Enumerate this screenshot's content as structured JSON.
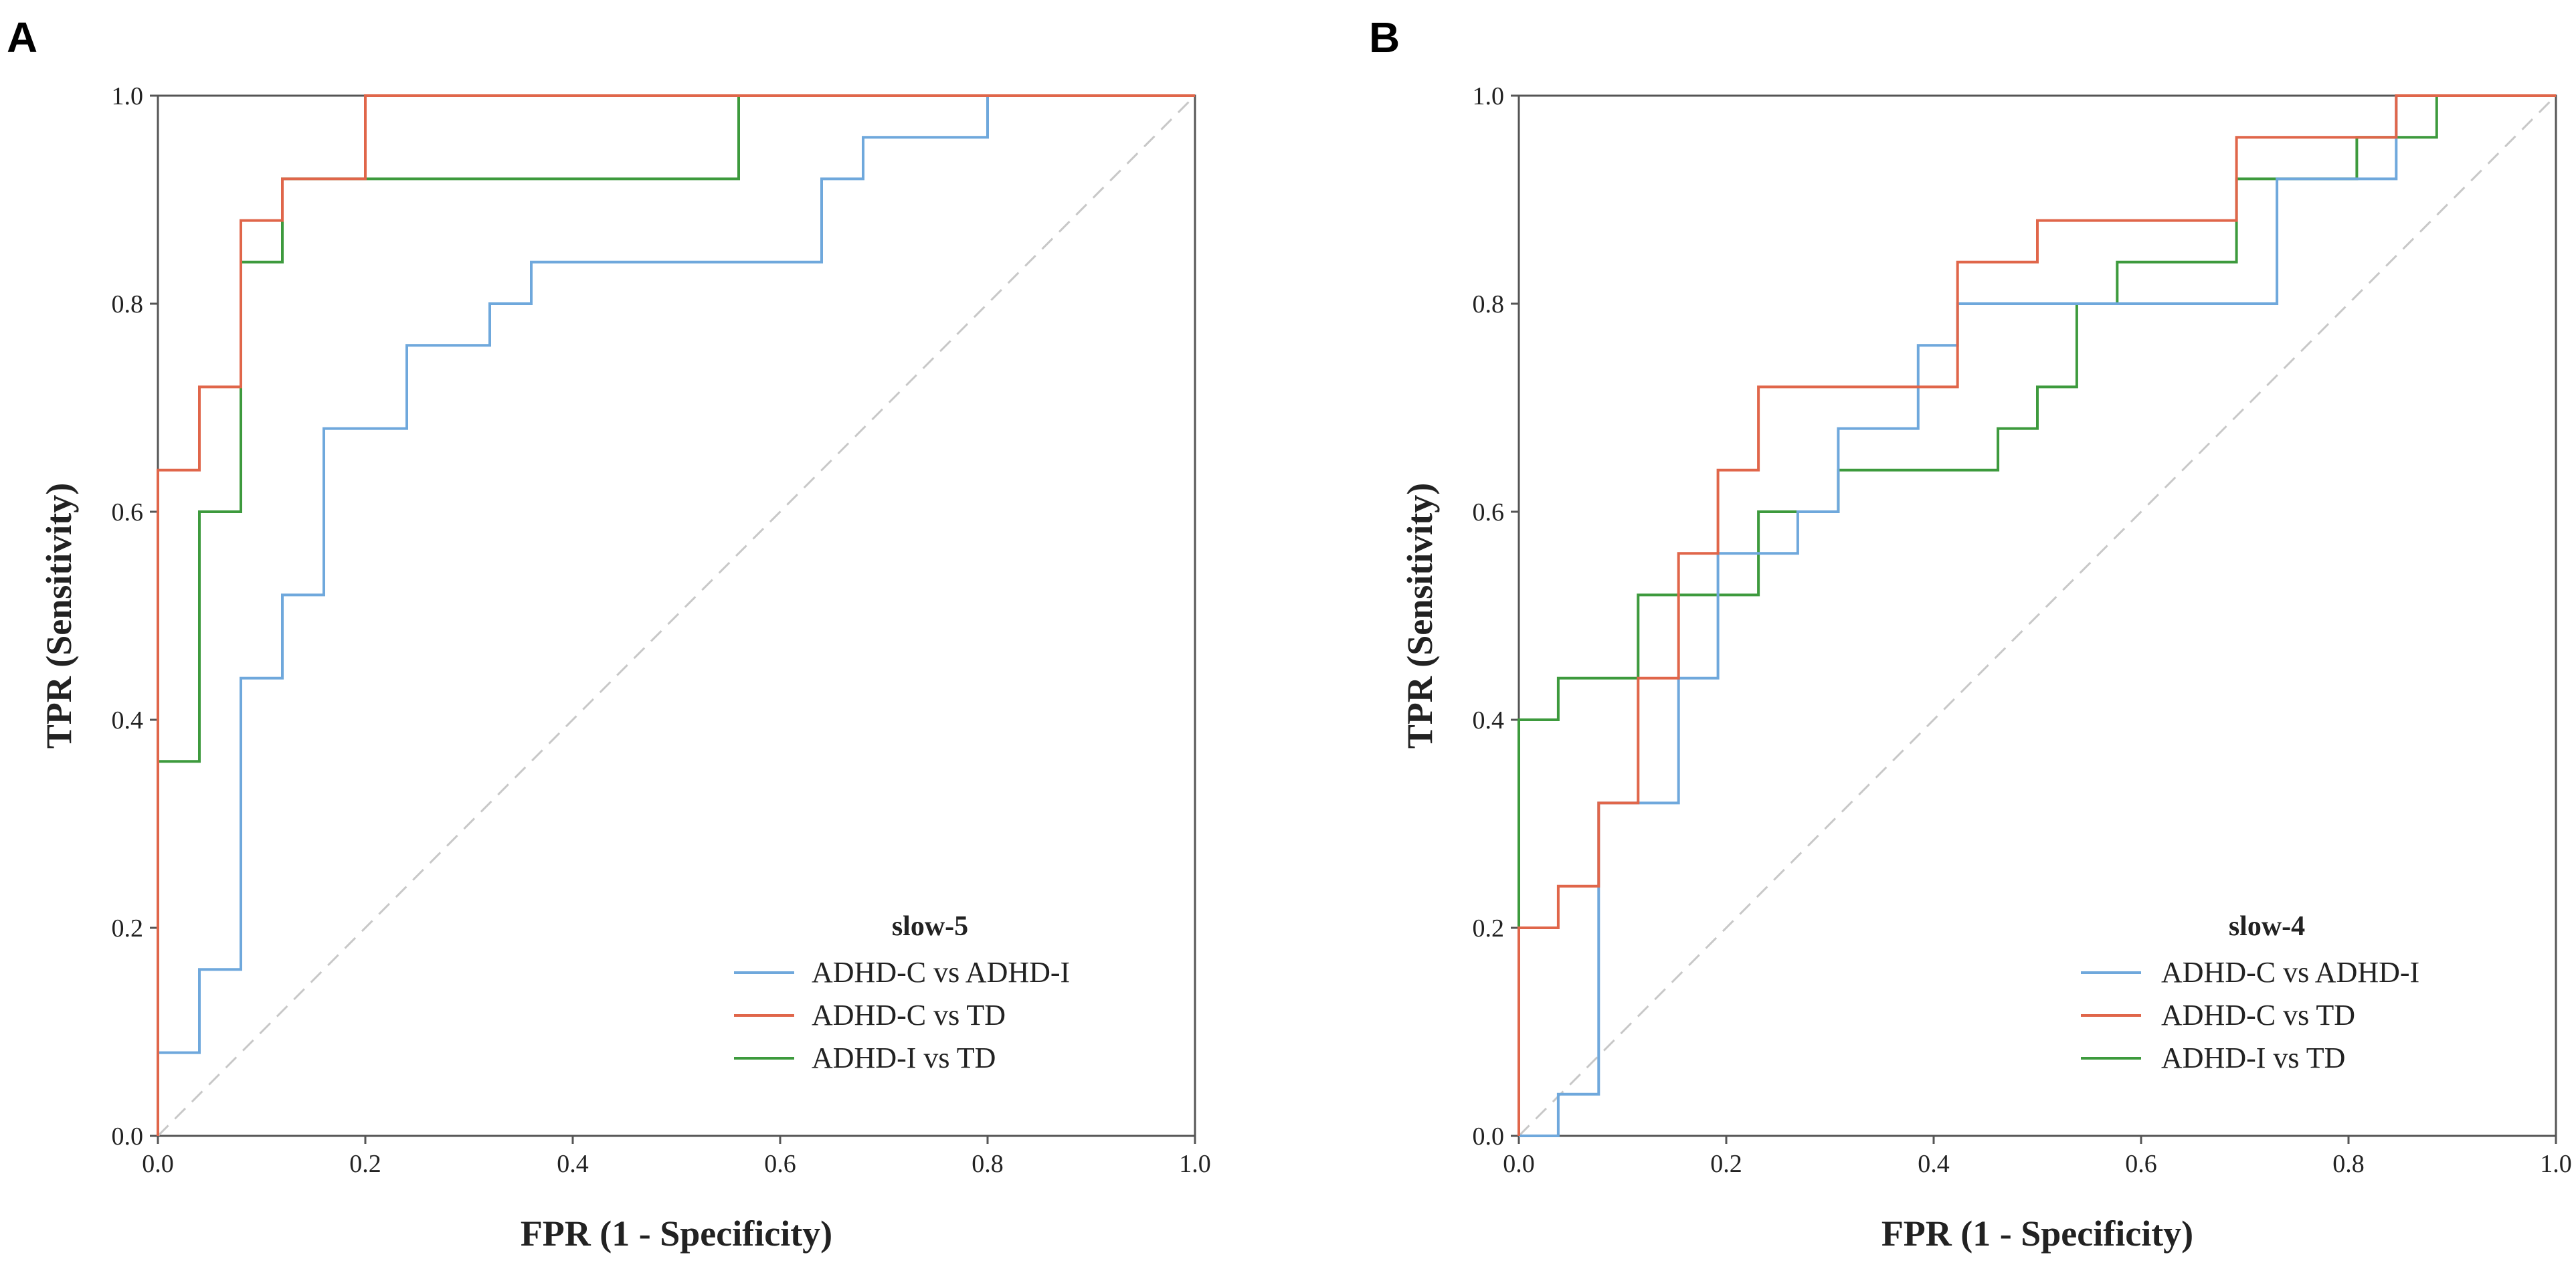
{
  "chart_data": [
    {
      "panel_label": "A",
      "type": "line",
      "xlabel": "FPR (1 - Specificity)",
      "ylabel": "TPR (Sensitivity)",
      "xlim": [
        0,
        1
      ],
      "ylim": [
        0,
        1
      ],
      "xticks": [
        "0.0",
        "0.2",
        "0.4",
        "0.6",
        "0.8",
        "1.0"
      ],
      "yticks": [
        "0.0",
        "0.2",
        "0.4",
        "0.6",
        "0.8",
        "1.0"
      ],
      "legend_title": "slow-5",
      "legend_location": "bottom-right",
      "reference_line": "diagonal-dashed",
      "series": [
        {
          "name": "ADHD-C vs ADHD-I",
          "color": "#6fa8dc",
          "points": [
            [
              0,
              0
            ],
            [
              0,
              0.08
            ],
            [
              0.04,
              0.08
            ],
            [
              0.04,
              0.16
            ],
            [
              0.08,
              0.16
            ],
            [
              0.08,
              0.44
            ],
            [
              0.12,
              0.44
            ],
            [
              0.12,
              0.52
            ],
            [
              0.16,
              0.52
            ],
            [
              0.16,
              0.68
            ],
            [
              0.24,
              0.68
            ],
            [
              0.24,
              0.76
            ],
            [
              0.32,
              0.76
            ],
            [
              0.32,
              0.8
            ],
            [
              0.36,
              0.8
            ],
            [
              0.36,
              0.84
            ],
            [
              0.64,
              0.84
            ],
            [
              0.64,
              0.92
            ],
            [
              0.68,
              0.92
            ],
            [
              0.68,
              0.96
            ],
            [
              0.8,
              0.96
            ],
            [
              0.8,
              1.0
            ],
            [
              1.0,
              1.0
            ]
          ]
        },
        {
          "name": "ADHD-C vs TD",
          "color": "#e0664a",
          "points": [
            [
              0,
              0
            ],
            [
              0,
              0.64
            ],
            [
              0.04,
              0.64
            ],
            [
              0.04,
              0.72
            ],
            [
              0.08,
              0.72
            ],
            [
              0.08,
              0.88
            ],
            [
              0.12,
              0.88
            ],
            [
              0.12,
              0.92
            ],
            [
              0.2,
              0.92
            ],
            [
              0.2,
              1.0
            ],
            [
              1.0,
              1.0
            ]
          ]
        },
        {
          "name": "ADHD-I vs TD",
          "color": "#3d9a3d",
          "points": [
            [
              0,
              0
            ],
            [
              0,
              0.36
            ],
            [
              0.04,
              0.36
            ],
            [
              0.04,
              0.6
            ],
            [
              0.08,
              0.6
            ],
            [
              0.08,
              0.84
            ],
            [
              0.12,
              0.84
            ],
            [
              0.12,
              0.92
            ],
            [
              0.56,
              0.92
            ],
            [
              0.56,
              1.0
            ],
            [
              1.0,
              1.0
            ]
          ]
        }
      ]
    },
    {
      "panel_label": "B",
      "type": "line",
      "xlabel": "FPR (1 - Specificity)",
      "ylabel": "TPR (Sensitivity)",
      "xlim": [
        0,
        1
      ],
      "ylim": [
        0,
        1
      ],
      "xticks": [
        "0.0",
        "0.2",
        "0.4",
        "0.6",
        "0.8",
        "1.0"
      ],
      "yticks": [
        "0.0",
        "0.2",
        "0.4",
        "0.6",
        "0.8",
        "1.0"
      ],
      "legend_title": "slow-4",
      "legend_location": "bottom-right",
      "reference_line": "diagonal-dashed",
      "series": [
        {
          "name": "ADHD-C vs ADHD-I",
          "color": "#6fa8dc",
          "points": [
            [
              0,
              0
            ],
            [
              0.038,
              0
            ],
            [
              0.038,
              0.04
            ],
            [
              0.077,
              0.04
            ],
            [
              0.077,
              0.32
            ],
            [
              0.154,
              0.32
            ],
            [
              0.154,
              0.44
            ],
            [
              0.192,
              0.44
            ],
            [
              0.192,
              0.56
            ],
            [
              0.269,
              0.56
            ],
            [
              0.269,
              0.6
            ],
            [
              0.308,
              0.6
            ],
            [
              0.308,
              0.68
            ],
            [
              0.385,
              0.68
            ],
            [
              0.385,
              0.76
            ],
            [
              0.423,
              0.76
            ],
            [
              0.423,
              0.8
            ],
            [
              0.731,
              0.8
            ],
            [
              0.731,
              0.92
            ],
            [
              0.846,
              0.92
            ],
            [
              0.846,
              1.0
            ],
            [
              1.0,
              1.0
            ]
          ]
        },
        {
          "name": "ADHD-C vs TD",
          "color": "#e0664a",
          "points": [
            [
              0,
              0
            ],
            [
              0,
              0.2
            ],
            [
              0.038,
              0.2
            ],
            [
              0.038,
              0.24
            ],
            [
              0.077,
              0.24
            ],
            [
              0.077,
              0.32
            ],
            [
              0.115,
              0.32
            ],
            [
              0.115,
              0.44
            ],
            [
              0.154,
              0.44
            ],
            [
              0.154,
              0.56
            ],
            [
              0.192,
              0.56
            ],
            [
              0.192,
              0.64
            ],
            [
              0.231,
              0.64
            ],
            [
              0.231,
              0.72
            ],
            [
              0.423,
              0.72
            ],
            [
              0.423,
              0.84
            ],
            [
              0.5,
              0.84
            ],
            [
              0.5,
              0.88
            ],
            [
              0.692,
              0.88
            ],
            [
              0.692,
              0.96
            ],
            [
              0.846,
              0.96
            ],
            [
              0.846,
              1.0
            ],
            [
              1.0,
              1.0
            ]
          ]
        },
        {
          "name": "ADHD-I vs TD",
          "color": "#3d9a3d",
          "points": [
            [
              0,
              0
            ],
            [
              0,
              0.4
            ],
            [
              0.038,
              0.4
            ],
            [
              0.038,
              0.44
            ],
            [
              0.115,
              0.44
            ],
            [
              0.115,
              0.52
            ],
            [
              0.231,
              0.52
            ],
            [
              0.231,
              0.6
            ],
            [
              0.308,
              0.6
            ],
            [
              0.308,
              0.64
            ],
            [
              0.462,
              0.64
            ],
            [
              0.462,
              0.68
            ],
            [
              0.5,
              0.68
            ],
            [
              0.5,
              0.72
            ],
            [
              0.538,
              0.72
            ],
            [
              0.538,
              0.8
            ],
            [
              0.577,
              0.8
            ],
            [
              0.577,
              0.84
            ],
            [
              0.692,
              0.84
            ],
            [
              0.692,
              0.92
            ],
            [
              0.808,
              0.92
            ],
            [
              0.808,
              0.96
            ],
            [
              0.885,
              0.96
            ],
            [
              0.885,
              1.0
            ],
            [
              1.0,
              1.0
            ]
          ]
        }
      ]
    }
  ]
}
